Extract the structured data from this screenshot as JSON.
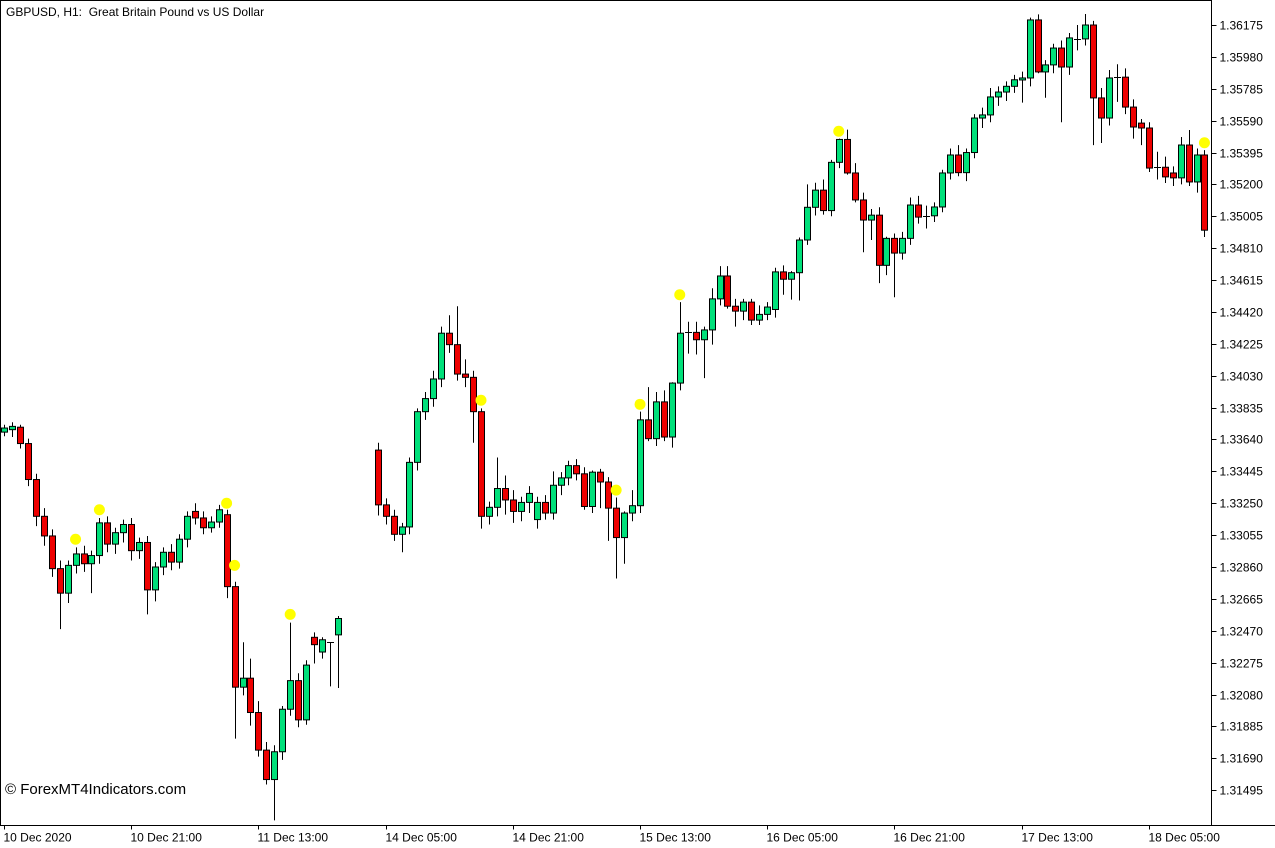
{
  "header": {
    "symbol_title": "GBPUSD, H1:  Great Britain Pound vs US Dollar"
  },
  "watermark": "© ForexMT4Indicators.com",
  "colors": {
    "background": "#FFFFFF",
    "bull_body": "#00E07A",
    "bear_body": "#EE0000",
    "candle_outline": "#000000",
    "wick": "#000000",
    "signal_dot": "#FFFF00",
    "axis_line": "#000000",
    "text": "#000000"
  },
  "chart_data": {
    "type": "candlestick",
    "symbol": "GBPUSD",
    "timeframe": "H1",
    "title": "GBPUSD, H1:  Great Britain Pound vs US Dollar",
    "grid": false,
    "y_axis": {
      "side": "right",
      "tick_labels": [
        "1.36175",
        "1.35980",
        "1.35785",
        "1.35590",
        "1.35395",
        "1.35200",
        "1.35005",
        "1.34810",
        "1.34615",
        "1.34420",
        "1.34225",
        "1.34030",
        "1.33835",
        "1.33640",
        "1.33445",
        "1.33250",
        "1.33055",
        "1.32860",
        "1.32665",
        "1.32470",
        "1.32275",
        "1.32080",
        "1.31885",
        "1.31690",
        "1.31495"
      ],
      "max_tick": 1.36175,
      "min_tick": 1.31495,
      "step": 0.00195
    },
    "x_axis": {
      "tick_labels": [
        {
          "index": 0,
          "text": "10 Dec 2020"
        },
        {
          "index": 16,
          "text": "10 Dec 21:00"
        },
        {
          "index": 32,
          "text": "11 Dec 13:00"
        },
        {
          "index": 48,
          "text": "14 Dec 05:00"
        },
        {
          "index": 64,
          "text": "14 Dec 21:00"
        },
        {
          "index": 80,
          "text": "15 Dec 13:00"
        },
        {
          "index": 96,
          "text": "16 Dec 05:00"
        },
        {
          "index": 112,
          "text": "16 Dec 21:00"
        },
        {
          "index": 128,
          "text": "17 Dec 13:00"
        },
        {
          "index": 144,
          "text": "18 Dec 05:00"
        }
      ]
    },
    "candles_ohlc": [
      [
        1.33685,
        1.3373,
        1.3366,
        1.3371
      ],
      [
        1.337,
        1.33745,
        1.33655,
        1.3372
      ],
      [
        1.33715,
        1.3373,
        1.33585,
        1.33615
      ],
      [
        1.33615,
        1.33645,
        1.33355,
        1.33395
      ],
      [
        1.33395,
        1.3343,
        1.3311,
        1.3317
      ],
      [
        1.3317,
        1.3322,
        1.3299,
        1.3305
      ],
      [
        1.3305,
        1.3309,
        1.328,
        1.3285
      ],
      [
        1.3285,
        1.329,
        1.3248,
        1.327
      ],
      [
        1.327,
        1.329,
        1.3264,
        1.3287
      ],
      [
        1.3287,
        1.3298,
        1.3282,
        1.3294
      ],
      [
        1.3294,
        1.3299,
        1.3283,
        1.3288
      ],
      [
        1.3288,
        1.3296,
        1.327,
        1.3293
      ],
      [
        1.3293,
        1.3316,
        1.3288,
        1.3313
      ],
      [
        1.3313,
        1.3317,
        1.3295,
        1.33
      ],
      [
        1.33,
        1.331,
        1.3294,
        1.3307
      ],
      [
        1.3307,
        1.3315,
        1.3301,
        1.3312
      ],
      [
        1.3312,
        1.3316,
        1.329,
        1.3296
      ],
      [
        1.3296,
        1.3304,
        1.3291,
        1.3301
      ],
      [
        1.3301,
        1.3305,
        1.3257,
        1.3272
      ],
      [
        1.3272,
        1.3289,
        1.3265,
        1.3286
      ],
      [
        1.3286,
        1.3298,
        1.3281,
        1.3295
      ],
      [
        1.3295,
        1.33,
        1.3284,
        1.3289
      ],
      [
        1.3289,
        1.3306,
        1.3285,
        1.3303
      ],
      [
        1.3303,
        1.332,
        1.3298,
        1.3317
      ],
      [
        1.332,
        1.3325,
        1.3312,
        1.3316
      ],
      [
        1.3316,
        1.332,
        1.3306,
        1.331
      ],
      [
        1.331,
        1.3317,
        1.3307,
        1.33135
      ],
      [
        1.33135,
        1.3324,
        1.331,
        1.3321
      ],
      [
        1.3318,
        1.3321,
        1.3267,
        1.3274
      ],
      [
        1.3274,
        1.3277,
        1.3181,
        1.32125
      ],
      [
        1.32125,
        1.324,
        1.32075,
        1.3218
      ],
      [
        1.3218,
        1.323,
        1.3189,
        1.3197
      ],
      [
        1.3197,
        1.3204,
        1.317,
        1.3174
      ],
      [
        1.3174,
        1.3179,
        1.3153,
        1.3156
      ],
      [
        1.3156,
        1.3177,
        1.3131,
        1.3173
      ],
      [
        1.3173,
        1.3201,
        1.3168,
        1.3199
      ],
      [
        1.3199,
        1.3252,
        1.3195,
        1.32165
      ],
      [
        1.32165,
        1.3221,
        1.3188,
        1.31925
      ],
      [
        1.31925,
        1.3229,
        1.31895,
        1.3226
      ],
      [
        1.3243,
        1.3246,
        1.3227,
        1.32385
      ],
      [
        1.3234,
        1.3243,
        1.323,
        1.32415
      ],
      [
        1.3239,
        1.324,
        1.3213,
        1.324
      ],
      [
        1.32445,
        1.3256,
        1.3212,
        1.32545
      ],
      null,
      null,
      null,
      null,
      [
        1.33575,
        1.3362,
        1.33175,
        1.3324
      ],
      [
        1.3324,
        1.3328,
        1.3312,
        1.3317
      ],
      [
        1.3317,
        1.3321,
        1.3302,
        1.3306
      ],
      [
        1.3306,
        1.3313,
        1.3295,
        1.33105
      ],
      [
        1.33105,
        1.3353,
        1.3306,
        1.335
      ],
      [
        1.335,
        1.3383,
        1.3345,
        1.3381
      ],
      [
        1.3381,
        1.3393,
        1.3376,
        1.3389
      ],
      [
        1.3389,
        1.3406,
        1.3384,
        1.3401
      ],
      [
        1.3401,
        1.3433,
        1.3396,
        1.3429
      ],
      [
        1.3429,
        1.344,
        1.3417,
        1.3422
      ],
      [
        1.3422,
        1.34455,
        1.34,
        1.3404
      ],
      [
        1.3404,
        1.3413,
        1.3396,
        1.3402
      ],
      [
        1.3402,
        1.3406,
        1.3362,
        1.3381
      ],
      [
        1.3381,
        1.3383,
        1.33095,
        1.3317
      ],
      [
        1.3317,
        1.3326,
        1.3312,
        1.33225
      ],
      [
        1.33225,
        1.3353,
        1.3317,
        1.3334
      ],
      [
        1.3334,
        1.3342,
        1.3318,
        1.3327
      ],
      [
        1.3327,
        1.3333,
        1.3313,
        1.332
      ],
      [
        1.332,
        1.3329,
        1.3314,
        1.33255
      ],
      [
        1.33255,
        1.33355,
        1.3319,
        1.3331
      ],
      [
        1.3315,
        1.3329,
        1.33095,
        1.33255
      ],
      [
        1.33255,
        1.333,
        1.3315,
        1.3319
      ],
      [
        1.3319,
        1.33445,
        1.3315,
        1.3336
      ],
      [
        1.3336,
        1.3344,
        1.333,
        1.33405
      ],
      [
        1.33405,
        1.3351,
        1.3336,
        1.3348
      ],
      [
        1.3348,
        1.3352,
        1.3339,
        1.3343
      ],
      [
        1.3343,
        1.3347,
        1.3321,
        1.3323
      ],
      [
        1.3323,
        1.3345,
        1.3319,
        1.3344
      ],
      [
        1.3344,
        1.3346,
        1.3322,
        1.3338
      ],
      [
        1.3338,
        1.3341,
        1.3302,
        1.3322
      ],
      [
        1.3322,
        1.33285,
        1.3279,
        1.3304
      ],
      [
        1.3304,
        1.332,
        1.3288,
        1.3319
      ],
      [
        1.3319,
        1.3333,
        1.3314,
        1.33235
      ],
      [
        1.33235,
        1.3381,
        1.3319,
        1.3376
      ],
      [
        1.3376,
        1.3396,
        1.3363,
        1.33645
      ],
      [
        1.33645,
        1.3393,
        1.336,
        1.3387
      ],
      [
        1.3387,
        1.3394,
        1.3363,
        1.33655
      ],
      [
        1.33655,
        1.3399,
        1.3359,
        1.33985
      ],
      [
        1.33985,
        1.3448,
        1.3394,
        1.3429
      ],
      [
        1.3429,
        1.3436,
        1.34165,
        1.34295
      ],
      [
        1.34295,
        1.3436,
        1.3416,
        1.3425
      ],
      [
        1.3425,
        1.3433,
        1.34015,
        1.3431
      ],
      [
        1.3431,
        1.34565,
        1.3422,
        1.345
      ],
      [
        1.345,
        1.347,
        1.3446,
        1.3464
      ],
      [
        1.3464,
        1.347,
        1.3444,
        1.34455
      ],
      [
        1.34455,
        1.345,
        1.3433,
        1.34425
      ],
      [
        1.34425,
        1.345,
        1.3437,
        1.3448
      ],
      [
        1.3448,
        1.345,
        1.3434,
        1.3437
      ],
      [
        1.3437,
        1.3446,
        1.3434,
        1.34405
      ],
      [
        1.34405,
        1.3448,
        1.3437,
        1.3445
      ],
      [
        1.34435,
        1.3469,
        1.34385,
        1.34665
      ],
      [
        1.34665,
        1.34705,
        1.34525,
        1.3462
      ],
      [
        1.3462,
        1.3467,
        1.34495,
        1.3466
      ],
      [
        1.3466,
        1.34875,
        1.3449,
        1.3486
      ],
      [
        1.3486,
        1.352,
        1.3483,
        1.3506
      ],
      [
        1.3506,
        1.3521,
        1.3501,
        1.35165
      ],
      [
        1.35165,
        1.3523,
        1.35015,
        1.3504
      ],
      [
        1.3504,
        1.3535,
        1.35005,
        1.35335
      ],
      [
        1.35335,
        1.3548,
        1.353,
        1.35475
      ],
      [
        1.35475,
        1.35535,
        1.3526,
        1.3527
      ],
      [
        1.3527,
        1.3533,
        1.3509,
        1.35105
      ],
      [
        1.35105,
        1.3515,
        1.34785,
        1.34982
      ],
      [
        1.34982,
        1.3505,
        1.3486,
        1.35012
      ],
      [
        1.35012,
        1.3506,
        1.34596,
        1.34705
      ],
      [
        1.34705,
        1.3488,
        1.34645,
        1.3487
      ],
      [
        1.3487,
        1.349,
        1.3451,
        1.3478
      ],
      [
        1.3478,
        1.3491,
        1.3474,
        1.3487
      ],
      [
        1.3487,
        1.3512,
        1.3483,
        1.35074
      ],
      [
        1.35074,
        1.3513,
        1.3496,
        1.35
      ],
      [
        1.35,
        1.3507,
        1.3493,
        1.35008
      ],
      [
        1.35008,
        1.3509,
        1.3497,
        1.35062
      ],
      [
        1.35062,
        1.3529,
        1.3503,
        1.3527
      ],
      [
        1.3527,
        1.3542,
        1.3523,
        1.3538
      ],
      [
        1.3538,
        1.3544,
        1.3525,
        1.35272
      ],
      [
        1.35272,
        1.3542,
        1.3522,
        1.35395
      ],
      [
        1.35395,
        1.3563,
        1.3536,
        1.35606
      ],
      [
        1.35606,
        1.3567,
        1.35545,
        1.35625
      ],
      [
        1.35625,
        1.3579,
        1.3558,
        1.35735
      ],
      [
        1.35735,
        1.358,
        1.3568,
        1.35765
      ],
      [
        1.35765,
        1.3583,
        1.3571,
        1.358
      ],
      [
        1.358,
        1.3587,
        1.3576,
        1.3584
      ],
      [
        1.3584,
        1.3589,
        1.357,
        1.35851
      ],
      [
        1.35851,
        1.3622,
        1.358,
        1.36206
      ],
      [
        1.36206,
        1.3624,
        1.3588,
        1.35888
      ],
      [
        1.35888,
        1.3596,
        1.3573,
        1.35931
      ],
      [
        1.35931,
        1.3606,
        1.3588,
        1.36034
      ],
      [
        1.36034,
        1.3608,
        1.3558,
        1.35918
      ],
      [
        1.35918,
        1.36126,
        1.3587,
        1.36096
      ],
      [
        1.36096,
        1.36175,
        1.3602,
        1.3609
      ],
      [
        1.3609,
        1.36242,
        1.3605,
        1.36175
      ],
      [
        1.36175,
        1.362,
        1.3544,
        1.35729
      ],
      [
        1.35729,
        1.3579,
        1.35453,
        1.35606
      ],
      [
        1.35606,
        1.359,
        1.3556,
        1.35851
      ],
      [
        1.35851,
        1.35935,
        1.35705,
        1.35856
      ],
      [
        1.35856,
        1.3591,
        1.3563,
        1.35673
      ],
      [
        1.35673,
        1.3572,
        1.3548,
        1.35551
      ],
      [
        1.35575,
        1.356,
        1.3544,
        1.35545
      ],
      [
        1.35545,
        1.3558,
        1.35276,
        1.353
      ],
      [
        1.353,
        1.354,
        1.3523,
        1.35305
      ],
      [
        1.35305,
        1.3537,
        1.35209,
        1.35246
      ],
      [
        1.3527,
        1.3531,
        1.3519,
        1.3524
      ],
      [
        1.3524,
        1.3549,
        1.352,
        1.35441
      ],
      [
        1.35441,
        1.35533,
        1.3519,
        1.35215
      ],
      [
        1.35215,
        1.3542,
        1.3515,
        1.3538
      ],
      [
        1.3538,
        1.3541,
        1.34878,
        1.3492
      ]
    ],
    "signal_dots": [
      {
        "index": 9,
        "price": 1.3303
      },
      {
        "index": 12,
        "price": 1.3321
      },
      {
        "index": 28,
        "price": 1.3325
      },
      {
        "index": 29,
        "price": 1.3287
      },
      {
        "index": 36,
        "price": 1.3257
      },
      {
        "index": 60,
        "price": 1.3388
      },
      {
        "index": 77,
        "price": 1.3333
      },
      {
        "index": 80,
        "price": 1.33855
      },
      {
        "index": 85,
        "price": 1.34525
      },
      {
        "index": 105,
        "price": 1.35525
      },
      {
        "index": 151,
        "price": 1.35455
      }
    ]
  }
}
